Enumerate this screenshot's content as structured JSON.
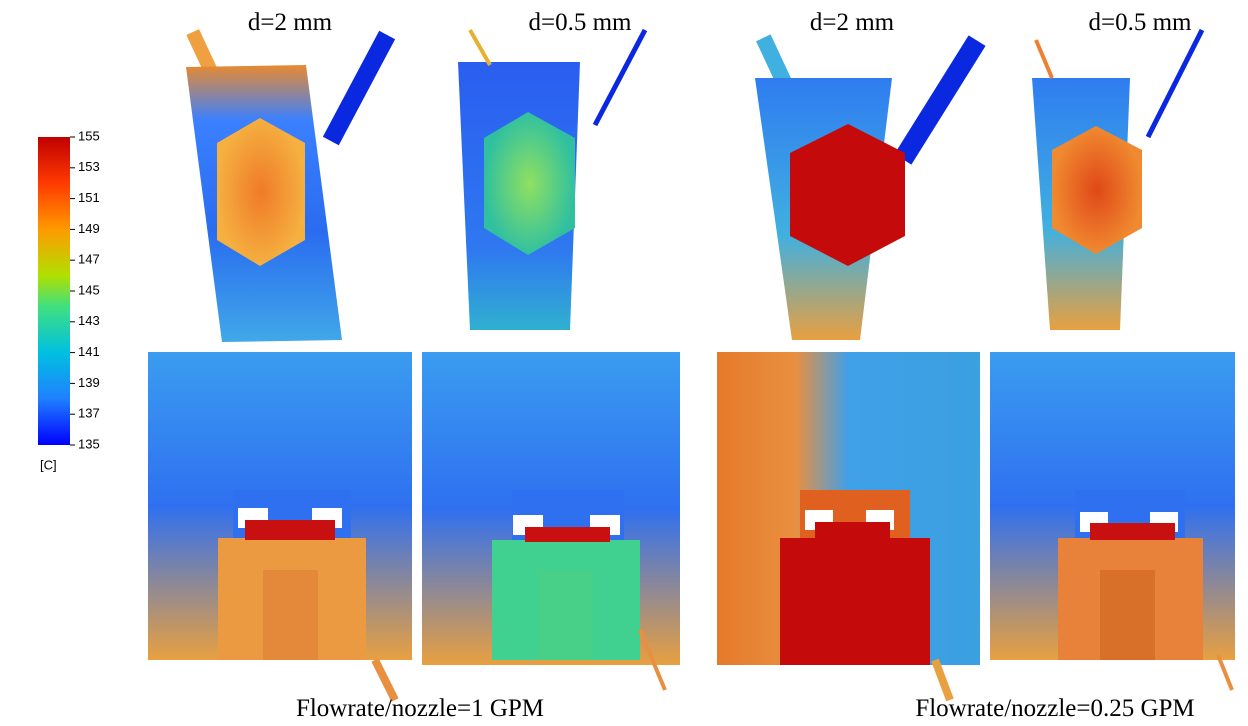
{
  "colorbar": {
    "label": "[C]",
    "lim": [
      135,
      155
    ],
    "ticks": [
      155,
      153,
      151,
      149,
      147,
      145,
      143,
      141,
      139,
      137,
      135
    ]
  },
  "panels": [
    {
      "title": "d=2 mm"
    },
    {
      "title": "d=0.5 mm"
    },
    {
      "title": "d=2 mm"
    },
    {
      "title": "d=0.5 mm"
    }
  ],
  "captions": [
    "Flowrate/nozzle=1  GPM",
    "Flowrate/nozzle=0.25  GPM"
  ]
}
